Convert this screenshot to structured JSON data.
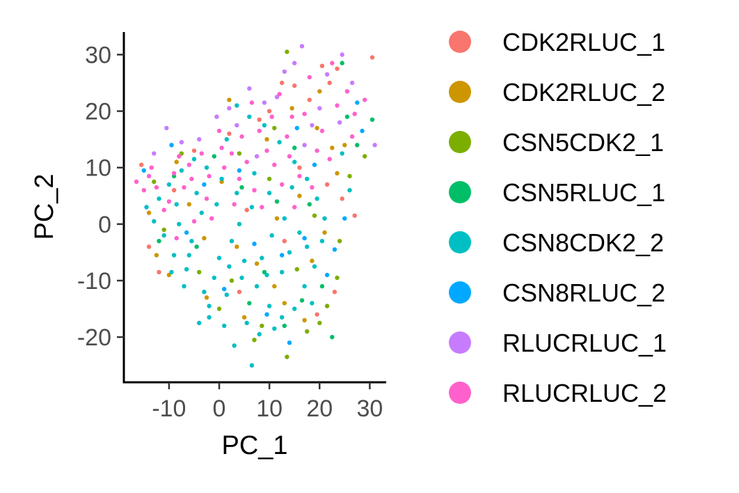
{
  "chart_data": {
    "type": "scatter",
    "title": "",
    "xlabel": "PC_1",
    "ylabel": "PC_2",
    "xlim": [
      -19,
      33
    ],
    "ylim": [
      -28,
      34
    ],
    "xticks": [
      -10,
      0,
      10,
      20,
      30
    ],
    "yticks": [
      -20,
      -10,
      0,
      10,
      20,
      30
    ],
    "xtick_labels": [
      "-10",
      "0",
      "10",
      "20",
      "30"
    ],
    "ytick_labels": [
      "-20",
      "-10",
      "0",
      "10",
      "20",
      "30"
    ],
    "grid": false,
    "legend_position": "right",
    "series": [
      {
        "name": "CDK2RLUC_1",
        "color": "#F8766D",
        "points": [
          [
            23.5,
            27.5
          ],
          [
            20.5,
            28.0
          ],
          [
            30.5,
            29.5
          ],
          [
            22.0,
            25.0
          ],
          [
            15.0,
            24.5
          ],
          [
            18.0,
            22.0
          ],
          [
            10.0,
            20.0
          ],
          [
            -12.0,
            -8.5
          ],
          [
            -14.0,
            -4.0
          ],
          [
            24.5,
            4.5
          ],
          [
            27.0,
            1.5
          ],
          [
            23.0,
            -12.0
          ],
          [
            19.5,
            -16.0
          ],
          [
            2.0,
            16.0
          ],
          [
            -5.0,
            13.0
          ],
          [
            8.0,
            18.5
          ],
          [
            13.0,
            -3.0
          ],
          [
            -9.0,
            6.0
          ],
          [
            4.0,
            -12.0
          ],
          [
            16.0,
            10.0
          ],
          [
            -15.5,
            10.5
          ],
          [
            21.5,
            7.0
          ],
          [
            12.5,
            25.0
          ],
          [
            5.5,
            2.5
          ]
        ]
      },
      {
        "name": "CDK2RLUC_2",
        "color": "#CD9600",
        "points": [
          [
            14.5,
            20.5
          ],
          [
            19.5,
            17.0
          ],
          [
            22.5,
            13.5
          ],
          [
            -10.0,
            -9.0
          ],
          [
            -12.5,
            -5.5
          ],
          [
            21.0,
            -1.5
          ],
          [
            18.5,
            -6.5
          ],
          [
            11.0,
            -11.0
          ],
          [
            5.0,
            -16.5
          ],
          [
            -8.5,
            11.0
          ],
          [
            2.0,
            22.0
          ],
          [
            9.5,
            15.0
          ],
          [
            16.0,
            5.0
          ],
          [
            -3.0,
            -2.5
          ],
          [
            7.5,
            -7.0
          ],
          [
            -6.0,
            3.5
          ],
          [
            20.0,
            23.5
          ],
          [
            13.0,
            -14.0
          ],
          [
            17.0,
            -17.0
          ],
          [
            -2.5,
            -13.0
          ],
          [
            25.0,
            14.0
          ],
          [
            0.5,
            7.5
          ],
          [
            11.5,
            1.0
          ],
          [
            -14.0,
            2.0
          ],
          [
            23.5,
            9.0
          ],
          [
            3.5,
            -4.0
          ]
        ]
      },
      {
        "name": "CSN5CDK2_1",
        "color": "#7CAE00",
        "points": [
          [
            13.5,
            30.5
          ],
          [
            23.5,
            -9.5
          ],
          [
            20.0,
            -17.5
          ],
          [
            13.5,
            -23.5
          ],
          [
            -7.5,
            12.5
          ],
          [
            29.0,
            12.0
          ],
          [
            26.0,
            8.5
          ],
          [
            21.5,
            -14.5
          ],
          [
            7.0,
            -20.5
          ],
          [
            17.5,
            -19.0
          ],
          [
            -11.0,
            -1.0
          ],
          [
            10.0,
            8.0
          ],
          [
            15.5,
            -8.0
          ],
          [
            2.5,
            -10.0
          ],
          [
            4.0,
            12.5
          ],
          [
            19.0,
            1.5
          ],
          [
            -4.0,
            -8.5
          ],
          [
            8.5,
            -18.0
          ],
          [
            24.0,
            -3.0
          ],
          [
            -13.0,
            7.5
          ],
          [
            11.0,
            17.0
          ],
          [
            0.0,
            -15.0
          ]
        ]
      },
      {
        "name": "CSN5RLUC_1",
        "color": "#00BE67",
        "points": [
          [
            24.5,
            28.5
          ],
          [
            30.5,
            18.5
          ],
          [
            27.5,
            14.0
          ],
          [
            22.5,
            -20.0
          ],
          [
            13.0,
            -18.0
          ],
          [
            -9.0,
            8.5
          ],
          [
            18.0,
            3.5
          ],
          [
            4.5,
            6.5
          ],
          [
            -4.5,
            -4.0
          ],
          [
            9.0,
            -8.5
          ],
          [
            15.0,
            13.5
          ],
          [
            -1.0,
            12.0
          ],
          [
            20.5,
            -11.0
          ],
          [
            6.0,
            -14.0
          ],
          [
            -12.0,
            -3.0
          ],
          [
            11.5,
            4.0
          ],
          [
            25.5,
            19.0
          ],
          [
            16.5,
            -13.5
          ]
        ]
      },
      {
        "name": "CSN8CDK2_2",
        "color": "#00BFC4",
        "points": [
          [
            6.5,
            -25.0
          ],
          [
            3.0,
            -21.5
          ],
          [
            -4.0,
            -17.5
          ],
          [
            -2.0,
            -14.5
          ],
          [
            1.5,
            -12.5
          ],
          [
            4.5,
            -9.5
          ],
          [
            -6.5,
            -8.0
          ],
          [
            -9.0,
            -5.5
          ],
          [
            -11.0,
            -2.0
          ],
          [
            -13.0,
            0.5
          ],
          [
            -14.5,
            3.0
          ],
          [
            -8.0,
            0.0
          ],
          [
            -5.5,
            -3.0
          ],
          [
            -3.5,
            2.0
          ],
          [
            0.0,
            -6.0
          ],
          [
            2.5,
            -3.0
          ],
          [
            5.0,
            -6.5
          ],
          [
            7.5,
            -11.0
          ],
          [
            10.0,
            -14.5
          ],
          [
            12.5,
            -16.5
          ],
          [
            15.0,
            -15.0
          ],
          [
            17.0,
            -11.0
          ],
          [
            19.0,
            -7.5
          ],
          [
            20.5,
            -3.0
          ],
          [
            21.0,
            1.0
          ],
          [
            19.5,
            4.5
          ],
          [
            17.5,
            8.0
          ],
          [
            15.0,
            11.0
          ],
          [
            12.0,
            14.5
          ],
          [
            9.0,
            17.5
          ],
          [
            6.0,
            19.0
          ],
          [
            3.5,
            21.0
          ],
          [
            8.5,
            -6.0
          ],
          [
            10.5,
            -2.0
          ],
          [
            13.0,
            1.0
          ],
          [
            6.5,
            3.0
          ],
          [
            3.5,
            5.5
          ],
          [
            0.5,
            8.0
          ],
          [
            -2.5,
            10.0
          ],
          [
            -5.0,
            11.5
          ],
          [
            -7.5,
            9.5
          ],
          [
            -10.0,
            7.0
          ],
          [
            -12.0,
            4.5
          ],
          [
            -1.0,
            -9.5
          ],
          [
            -3.0,
            -12.0
          ],
          [
            1.0,
            -18.0
          ],
          [
            5.5,
            -17.5
          ],
          [
            8.0,
            -19.5
          ],
          [
            11.0,
            -18.5
          ],
          [
            -7.0,
            -11.0
          ],
          [
            -9.5,
            -8.5
          ],
          [
            14.0,
            -5.0
          ],
          [
            16.0,
            -1.5
          ],
          [
            18.5,
            -14.0
          ],
          [
            24.5,
            12.5
          ],
          [
            26.0,
            6.0
          ],
          [
            4.0,
            0.0
          ],
          [
            7.0,
            9.0
          ],
          [
            -4.5,
            5.5
          ],
          [
            10.0,
            5.5
          ],
          [
            14.5,
            6.5
          ],
          [
            1.5,
            15.0
          ],
          [
            -6.0,
            -5.5
          ],
          [
            2.0,
            -7.5
          ],
          [
            -0.5,
            3.5
          ],
          [
            9.5,
            -9.0
          ],
          [
            12.5,
            -8.5
          ],
          [
            -8.5,
            3.5
          ],
          [
            17.5,
            -4.0
          ],
          [
            -2.0,
            -16.5
          ]
        ]
      },
      {
        "name": "CSN8RLUC_2",
        "color": "#00A9FF",
        "points": [
          [
            27.5,
            21.5
          ],
          [
            28.5,
            16.5
          ],
          [
            23.0,
            -4.5
          ],
          [
            21.5,
            -9.0
          ],
          [
            14.0,
            -21.0
          ],
          [
            -9.5,
            14.0
          ],
          [
            -15.0,
            9.5
          ],
          [
            9.5,
            -16.0
          ],
          [
            17.0,
            -2.5
          ],
          [
            4.0,
            9.5
          ],
          [
            12.5,
            -5.5
          ],
          [
            -6.5,
            -1.5
          ],
          [
            1.0,
            -11.5
          ],
          [
            15.5,
            17.0
          ],
          [
            -3.0,
            7.0
          ],
          [
            19.0,
            10.5
          ],
          [
            7.0,
            -3.5
          ],
          [
            25.0,
            1.0
          ]
        ]
      },
      {
        "name": "RLUCRLUC_1",
        "color": "#C77CFF",
        "points": [
          [
            16.5,
            31.5
          ],
          [
            24.5,
            30.0
          ],
          [
            15.0,
            28.5
          ],
          [
            21.5,
            26.5
          ],
          [
            13.0,
            27.0
          ],
          [
            26.5,
            25.0
          ],
          [
            31.0,
            14.0
          ],
          [
            6.0,
            24.0
          ],
          [
            9.0,
            21.5
          ],
          [
            -0.5,
            19.0
          ],
          [
            -4.0,
            15.0
          ],
          [
            -10.5,
            17.0
          ],
          [
            -13.0,
            12.5
          ],
          [
            18.5,
            17.5
          ],
          [
            24.0,
            18.0
          ],
          [
            11.5,
            22.5
          ],
          [
            3.5,
            17.5
          ],
          [
            20.0,
            20.5
          ],
          [
            17.0,
            14.0
          ],
          [
            -7.5,
            14.5
          ],
          [
            2.0,
            20.5
          ],
          [
            7.5,
            12.0
          ]
        ]
      },
      {
        "name": "RLUCRLUC_2",
        "color": "#FF61CC",
        "points": [
          [
            22.5,
            28.5
          ],
          [
            18.0,
            26.0
          ],
          [
            25.5,
            23.5
          ],
          [
            29.0,
            22.0
          ],
          [
            12.0,
            23.0
          ],
          [
            14.5,
            19.0
          ],
          [
            8.0,
            16.5
          ],
          [
            4.5,
            15.5
          ],
          [
            0.5,
            13.5
          ],
          [
            -3.5,
            12.5
          ],
          [
            -6.0,
            10.5
          ],
          [
            -9.0,
            9.0
          ],
          [
            -12.5,
            6.5
          ],
          [
            -15.0,
            6.0
          ],
          [
            -16.5,
            7.5
          ],
          [
            -11.0,
            2.5
          ],
          [
            -8.5,
            -2.5
          ],
          [
            -5.0,
            0.5
          ],
          [
            -2.5,
            4.5
          ],
          [
            1.0,
            10.0
          ],
          [
            5.5,
            11.0
          ],
          [
            9.5,
            13.0
          ],
          [
            13.5,
            15.5
          ],
          [
            17.0,
            19.5
          ],
          [
            20.5,
            16.5
          ],
          [
            23.5,
            21.0
          ],
          [
            27.0,
            19.5
          ],
          [
            19.5,
            13.0
          ],
          [
            16.0,
            8.5
          ],
          [
            11.0,
            10.5
          ],
          [
            7.0,
            6.0
          ],
          [
            3.0,
            3.5
          ],
          [
            -1.5,
            1.0
          ],
          [
            -7.0,
            6.5
          ],
          [
            -10.0,
            4.0
          ],
          [
            -13.5,
            10.0
          ],
          [
            6.5,
            21.5
          ],
          [
            10.5,
            19.0
          ],
          [
            0.0,
            16.5
          ],
          [
            -5.5,
            8.0
          ],
          [
            15.0,
            3.0
          ],
          [
            22.0,
            11.5
          ],
          [
            26.5,
            15.5
          ],
          [
            18.5,
            6.5
          ],
          [
            2.5,
            12.5
          ],
          [
            -2.0,
            8.5
          ],
          [
            8.5,
            3.0
          ],
          [
            12.5,
            7.0
          ],
          [
            -14.0,
            8.5
          ],
          [
            -8.0,
            12.0
          ],
          [
            4.0,
            8.0
          ],
          [
            14.0,
            12.0
          ]
        ]
      }
    ]
  }
}
